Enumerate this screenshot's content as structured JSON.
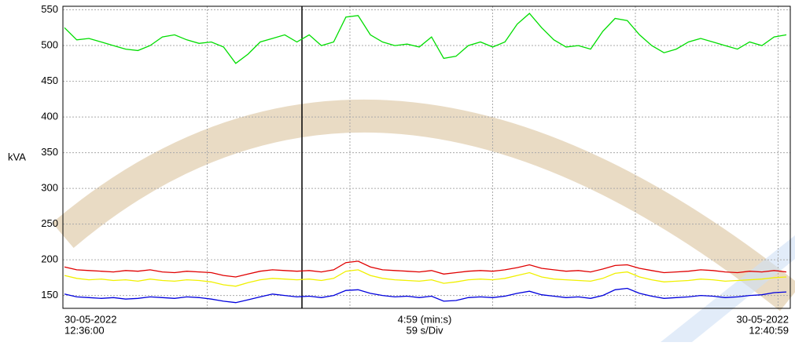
{
  "chart_data": {
    "type": "line",
    "y_label": "kVA",
    "x_labels": {
      "start": [
        "30-05-2022",
        "12:36:00"
      ],
      "center": [
        "4:59 (min:s)",
        "59 s/Div"
      ],
      "end": [
        "30-05-2022",
        "12:40:59"
      ]
    },
    "ylim": [
      132,
      555
    ],
    "yticks": [
      150,
      200,
      250,
      300,
      350,
      400,
      450,
      500,
      550
    ],
    "grid": true,
    "series": [
      {
        "color": "#00dd00",
        "values": [
          525,
          508,
          510,
          505,
          500,
          495,
          493,
          500,
          512,
          515,
          508,
          503,
          505,
          498,
          475,
          488,
          505,
          510,
          515,
          505,
          515,
          500,
          505,
          540,
          542,
          515,
          505,
          500,
          502,
          498,
          512,
          482,
          485,
          500,
          505,
          498,
          505,
          530,
          545,
          525,
          508,
          498,
          500,
          495,
          520,
          538,
          535,
          515,
          500,
          490,
          495,
          505,
          510,
          505,
          500,
          495,
          505,
          500,
          512,
          515
        ]
      },
      {
        "color": "#e00000",
        "values": [
          190,
          186,
          185,
          184,
          183,
          185,
          184,
          186,
          183,
          182,
          184,
          183,
          182,
          178,
          176,
          180,
          184,
          186,
          185,
          184,
          185,
          183,
          186,
          196,
          198,
          190,
          186,
          185,
          184,
          183,
          185,
          180,
          182,
          184,
          185,
          184,
          186,
          189,
          193,
          188,
          186,
          184,
          185,
          183,
          187,
          192,
          193,
          188,
          185,
          182,
          183,
          184,
          186,
          185,
          183,
          182,
          184,
          183,
          185,
          183
        ]
      },
      {
        "color": "#f0f000",
        "values": [
          178,
          174,
          172,
          173,
          171,
          172,
          170,
          173,
          171,
          170,
          172,
          171,
          169,
          165,
          163,
          168,
          172,
          174,
          173,
          172,
          173,
          171,
          174,
          184,
          186,
          178,
          174,
          172,
          171,
          170,
          172,
          167,
          169,
          172,
          173,
          172,
          174,
          178,
          182,
          176,
          173,
          172,
          171,
          170,
          174,
          181,
          183,
          176,
          172,
          169,
          170,
          171,
          173,
          172,
          170,
          171,
          172,
          173,
          175,
          176
        ]
      },
      {
        "color": "#0000dd",
        "values": [
          152,
          148,
          147,
          146,
          147,
          145,
          146,
          148,
          147,
          146,
          148,
          147,
          145,
          142,
          140,
          144,
          148,
          152,
          150,
          148,
          149,
          147,
          150,
          157,
          158,
          153,
          150,
          148,
          149,
          147,
          149,
          142,
          143,
          147,
          148,
          147,
          149,
          153,
          156,
          151,
          149,
          147,
          148,
          146,
          150,
          158,
          160,
          153,
          149,
          146,
          147,
          148,
          150,
          149,
          147,
          148,
          150,
          151,
          154,
          155
        ]
      }
    ]
  }
}
